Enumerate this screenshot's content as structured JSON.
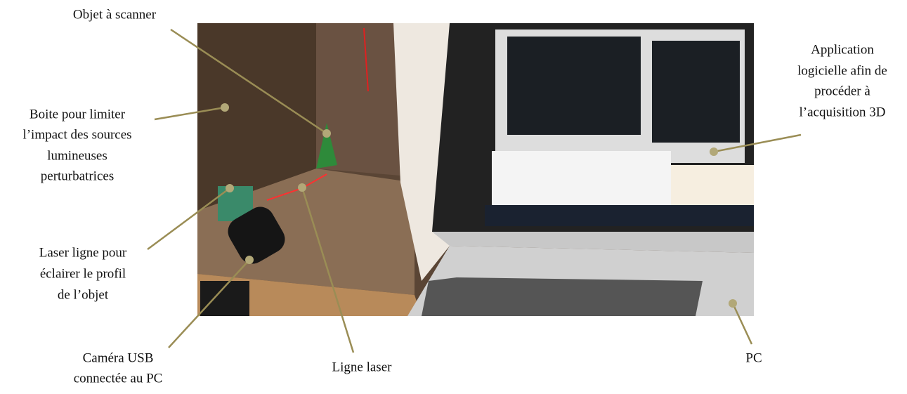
{
  "annotations": [
    {
      "lines": [
        "Objet à scanner"
      ]
    },
    {
      "lines": [
        "Boite pour limiter",
        "l’impact des sources",
        "lumineuses",
        "perturbatrices"
      ]
    },
    {
      "lines": [
        "Laser ligne pour",
        "éclairer le profil",
        "de l’objet"
      ]
    },
    {
      "lines": [
        "Caméra USB",
        "connectée au PC"
      ]
    },
    {
      "lines": [
        "Ligne laser"
      ]
    },
    {
      "lines": [
        "PC"
      ]
    },
    {
      "lines": [
        "Application",
        "logicielle afin de",
        "procéder à",
        "l’acquisition 3D"
      ]
    }
  ]
}
